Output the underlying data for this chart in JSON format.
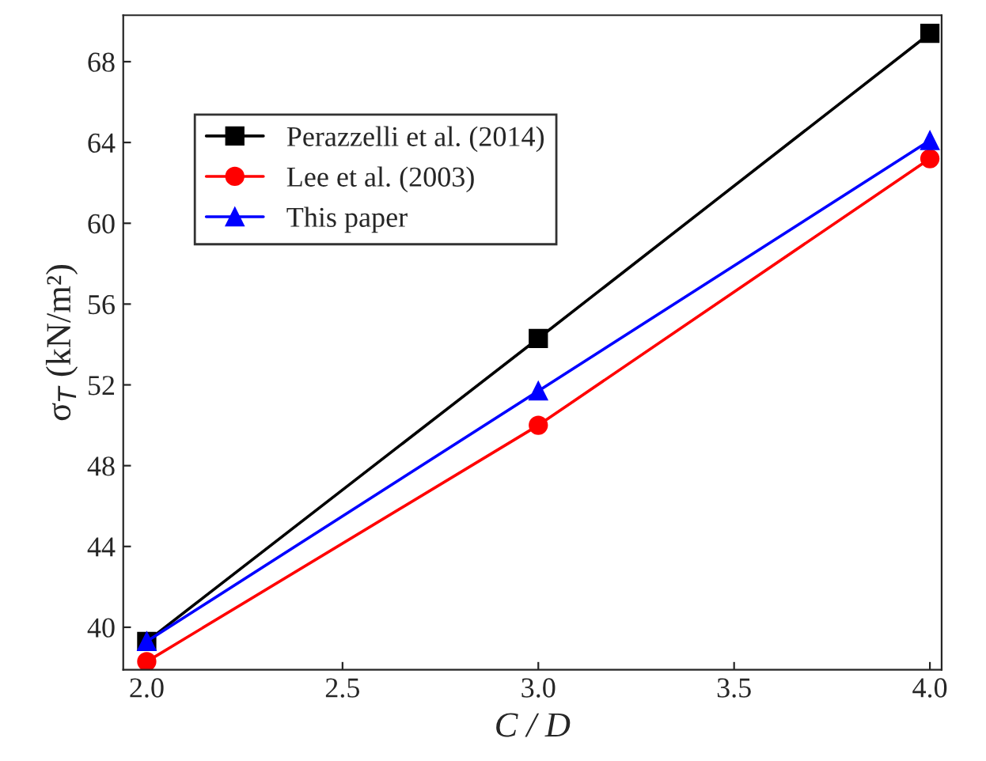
{
  "chart_data": {
    "type": "line",
    "xlabel": "C / D",
    "ylabel": "σ$_{T}$ (kN/m²)",
    "x": [
      2.0,
      3.0,
      4.0
    ],
    "series": [
      {
        "name": "Perazzelli et al. (2014)",
        "color": "#000000",
        "marker": "square",
        "values": [
          39.3,
          54.3,
          69.4
        ]
      },
      {
        "name": "Lee et al. (2003)",
        "color": "#ff0000",
        "marker": "circle",
        "values": [
          38.3,
          50.0,
          63.2
        ]
      },
      {
        "name": "This paper",
        "color": "#0000ff",
        "marker": "triangle",
        "values": [
          39.3,
          51.7,
          64.1
        ]
      }
    ],
    "xlim": [
      1.94,
      4.03
    ],
    "xticks": [
      {
        "value": 2.0,
        "label": "2.0"
      },
      {
        "value": 2.5,
        "label": "2.5"
      },
      {
        "value": 3.0,
        "label": "3.0"
      },
      {
        "value": 3.5,
        "label": "3.5"
      },
      {
        "value": 4.0,
        "label": "4.0"
      }
    ],
    "ylim": [
      37.9,
      70.3
    ],
    "yticks": [
      40,
      44,
      48,
      52,
      56,
      60,
      64,
      68
    ],
    "grid": false,
    "legend": "top left",
    "line_style": "solid"
  }
}
